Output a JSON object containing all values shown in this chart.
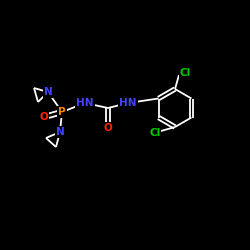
{
  "bg_color": "#000000",
  "bond_color": "#ffffff",
  "colors": {
    "N": "#4444ff",
    "O": "#ff2200",
    "P": "#ff8800",
    "Cl": "#00cc00",
    "C": "#ffffff"
  },
  "lw": 1.3,
  "fs": 7.5,
  "fs_cl": 7.5,
  "figsize": [
    2.5,
    2.5
  ],
  "dpi": 100
}
